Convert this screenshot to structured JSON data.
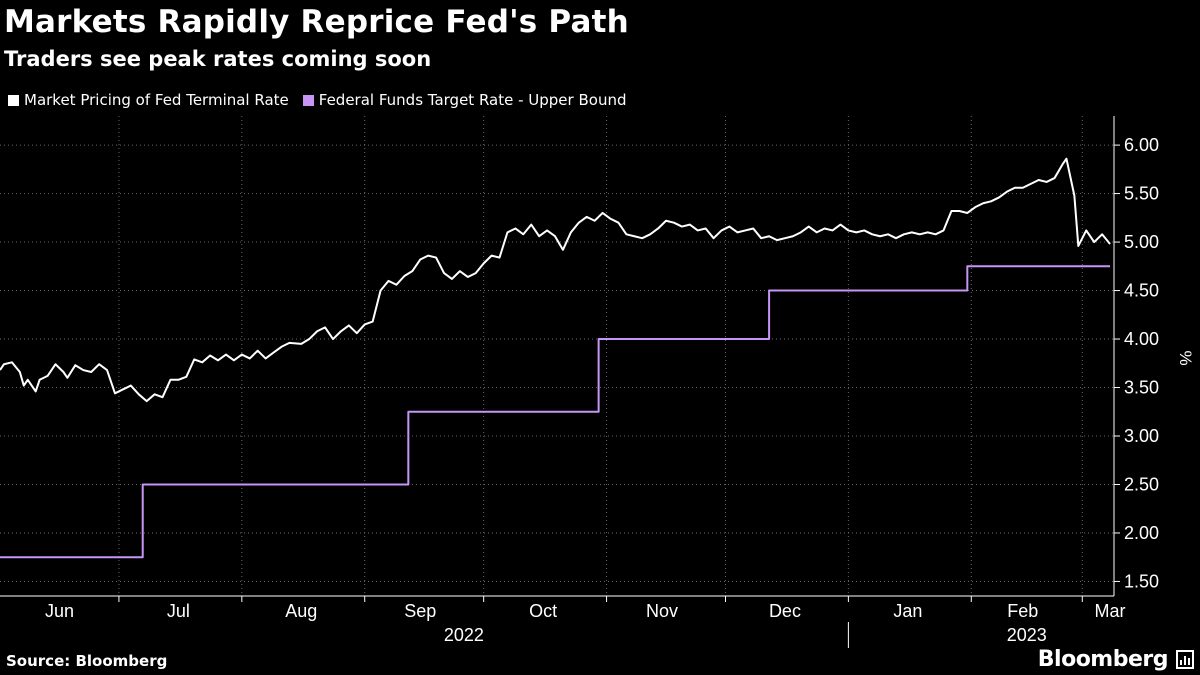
{
  "header": {
    "title": "Markets Rapidly Reprice Fed's Path",
    "subtitle": "Traders see peak rates coming soon"
  },
  "legend": {
    "items": [
      {
        "label": "Market Pricing of Fed Terminal Rate",
        "color": "#ffffff"
      },
      {
        "label": "Federal Funds Target Rate - Upper Bound",
        "color": "#c795f5"
      }
    ]
  },
  "footer": {
    "source": "Source: Bloomberg",
    "brand": "Bloomberg"
  },
  "chart_data": {
    "type": "line",
    "ylabel": "%",
    "ylim": [
      1.35,
      6.3
    ],
    "y_ticks": [
      "1.50",
      "2.00",
      "2.50",
      "3.00",
      "3.50",
      "4.00",
      "4.50",
      "5.00",
      "5.50",
      "6.00"
    ],
    "x_range": [
      "2022-06-01",
      "2023-03-09"
    ],
    "x_month_labels": [
      {
        "label": "Jun",
        "date": "2022-06-16"
      },
      {
        "label": "Jul",
        "date": "2022-07-16"
      },
      {
        "label": "Aug",
        "date": "2022-08-16"
      },
      {
        "label": "Sep",
        "date": "2022-09-15"
      },
      {
        "label": "Oct",
        "date": "2022-10-16"
      },
      {
        "label": "Nov",
        "date": "2022-11-15"
      },
      {
        "label": "Dec",
        "date": "2022-12-16"
      },
      {
        "label": "Jan",
        "date": "2023-01-16"
      },
      {
        "label": "Feb",
        "date": "2023-02-14"
      },
      {
        "label": "Mar",
        "date": "2023-03-08"
      }
    ],
    "x_year_labels": [
      {
        "label": "2022",
        "date": "2022-09-26"
      },
      {
        "label": "2023",
        "date": "2023-02-15"
      }
    ],
    "grid": true,
    "legend_position": "top-left",
    "series": [
      {
        "name": "Market Pricing of Fed Terminal Rate",
        "color": "#ffffff",
        "points": [
          [
            "2022-06-01",
            3.68
          ],
          [
            "2022-06-02",
            3.74
          ],
          [
            "2022-06-04",
            3.76
          ],
          [
            "2022-06-06",
            3.66
          ],
          [
            "2022-06-07",
            3.52
          ],
          [
            "2022-06-08",
            3.58
          ],
          [
            "2022-06-10",
            3.46
          ],
          [
            "2022-06-11",
            3.58
          ],
          [
            "2022-06-13",
            3.62
          ],
          [
            "2022-06-15",
            3.74
          ],
          [
            "2022-06-17",
            3.66
          ],
          [
            "2022-06-18",
            3.6
          ],
          [
            "2022-06-20",
            3.73
          ],
          [
            "2022-06-22",
            3.68
          ],
          [
            "2022-06-24",
            3.66
          ],
          [
            "2022-06-26",
            3.74
          ],
          [
            "2022-06-28",
            3.68
          ],
          [
            "2022-06-30",
            3.44
          ],
          [
            "2022-07-02",
            3.48
          ],
          [
            "2022-07-04",
            3.52
          ],
          [
            "2022-07-06",
            3.43
          ],
          [
            "2022-07-08",
            3.36
          ],
          [
            "2022-07-10",
            3.43
          ],
          [
            "2022-07-12",
            3.4
          ],
          [
            "2022-07-14",
            3.58
          ],
          [
            "2022-07-16",
            3.58
          ],
          [
            "2022-07-18",
            3.61
          ],
          [
            "2022-07-20",
            3.79
          ],
          [
            "2022-07-22",
            3.76
          ],
          [
            "2022-07-24",
            3.83
          ],
          [
            "2022-07-26",
            3.78
          ],
          [
            "2022-07-28",
            3.84
          ],
          [
            "2022-07-30",
            3.78
          ],
          [
            "2022-08-01",
            3.84
          ],
          [
            "2022-08-03",
            3.8
          ],
          [
            "2022-08-05",
            3.88
          ],
          [
            "2022-08-07",
            3.8
          ],
          [
            "2022-08-09",
            3.86
          ],
          [
            "2022-08-11",
            3.92
          ],
          [
            "2022-08-13",
            3.96
          ],
          [
            "2022-08-16",
            3.95
          ],
          [
            "2022-08-18",
            4.0
          ],
          [
            "2022-08-20",
            4.08
          ],
          [
            "2022-08-22",
            4.12
          ],
          [
            "2022-08-24",
            4.0
          ],
          [
            "2022-08-26",
            4.08
          ],
          [
            "2022-08-28",
            4.14
          ],
          [
            "2022-08-30",
            4.06
          ],
          [
            "2022-09-01",
            4.15
          ],
          [
            "2022-09-03",
            4.18
          ],
          [
            "2022-09-05",
            4.5
          ],
          [
            "2022-09-07",
            4.6
          ],
          [
            "2022-09-09",
            4.56
          ],
          [
            "2022-09-11",
            4.65
          ],
          [
            "2022-09-13",
            4.7
          ],
          [
            "2022-09-15",
            4.82
          ],
          [
            "2022-09-17",
            4.86
          ],
          [
            "2022-09-19",
            4.84
          ],
          [
            "2022-09-21",
            4.68
          ],
          [
            "2022-09-23",
            4.62
          ],
          [
            "2022-09-25",
            4.7
          ],
          [
            "2022-09-27",
            4.64
          ],
          [
            "2022-09-29",
            4.68
          ],
          [
            "2022-10-01",
            4.78
          ],
          [
            "2022-10-03",
            4.86
          ],
          [
            "2022-10-05",
            4.84
          ],
          [
            "2022-10-07",
            5.1
          ],
          [
            "2022-10-09",
            5.14
          ],
          [
            "2022-10-11",
            5.08
          ],
          [
            "2022-10-13",
            5.18
          ],
          [
            "2022-10-15",
            5.06
          ],
          [
            "2022-10-17",
            5.12
          ],
          [
            "2022-10-19",
            5.06
          ],
          [
            "2022-10-21",
            4.92
          ],
          [
            "2022-10-23",
            5.1
          ],
          [
            "2022-10-25",
            5.2
          ],
          [
            "2022-10-27",
            5.26
          ],
          [
            "2022-10-29",
            5.22
          ],
          [
            "2022-10-31",
            5.3
          ],
          [
            "2022-11-02",
            5.24
          ],
          [
            "2022-11-04",
            5.2
          ],
          [
            "2022-11-06",
            5.08
          ],
          [
            "2022-11-08",
            5.06
          ],
          [
            "2022-11-10",
            5.04
          ],
          [
            "2022-11-12",
            5.08
          ],
          [
            "2022-11-14",
            5.14
          ],
          [
            "2022-11-16",
            5.22
          ],
          [
            "2022-11-18",
            5.2
          ],
          [
            "2022-11-20",
            5.16
          ],
          [
            "2022-11-22",
            5.18
          ],
          [
            "2022-11-24",
            5.12
          ],
          [
            "2022-11-26",
            5.14
          ],
          [
            "2022-11-28",
            5.04
          ],
          [
            "2022-11-30",
            5.12
          ],
          [
            "2022-12-02",
            5.16
          ],
          [
            "2022-12-04",
            5.1
          ],
          [
            "2022-12-06",
            5.12
          ],
          [
            "2022-12-08",
            5.14
          ],
          [
            "2022-12-10",
            5.04
          ],
          [
            "2022-12-12",
            5.06
          ],
          [
            "2022-12-14",
            5.02
          ],
          [
            "2022-12-16",
            5.04
          ],
          [
            "2022-12-18",
            5.06
          ],
          [
            "2022-12-20",
            5.1
          ],
          [
            "2022-12-22",
            5.16
          ],
          [
            "2022-12-24",
            5.1
          ],
          [
            "2022-12-26",
            5.14
          ],
          [
            "2022-12-28",
            5.12
          ],
          [
            "2022-12-30",
            5.18
          ],
          [
            "2023-01-01",
            5.12
          ],
          [
            "2023-01-03",
            5.1
          ],
          [
            "2023-01-05",
            5.12
          ],
          [
            "2023-01-07",
            5.08
          ],
          [
            "2023-01-09",
            5.06
          ],
          [
            "2023-01-11",
            5.08
          ],
          [
            "2023-01-13",
            5.04
          ],
          [
            "2023-01-15",
            5.08
          ],
          [
            "2023-01-17",
            5.1
          ],
          [
            "2023-01-19",
            5.08
          ],
          [
            "2023-01-21",
            5.1
          ],
          [
            "2023-01-23",
            5.08
          ],
          [
            "2023-01-25",
            5.12
          ],
          [
            "2023-01-27",
            5.32
          ],
          [
            "2023-01-29",
            5.32
          ],
          [
            "2023-01-31",
            5.3
          ],
          [
            "2023-02-02",
            5.36
          ],
          [
            "2023-02-04",
            5.4
          ],
          [
            "2023-02-06",
            5.42
          ],
          [
            "2023-02-08",
            5.46
          ],
          [
            "2023-02-10",
            5.52
          ],
          [
            "2023-02-12",
            5.56
          ],
          [
            "2023-02-14",
            5.56
          ],
          [
            "2023-02-16",
            5.6
          ],
          [
            "2023-02-18",
            5.64
          ],
          [
            "2023-02-20",
            5.62
          ],
          [
            "2023-02-22",
            5.66
          ],
          [
            "2023-02-24",
            5.8
          ],
          [
            "2023-02-25",
            5.86
          ],
          [
            "2023-02-27",
            5.48
          ],
          [
            "2023-02-28",
            4.96
          ],
          [
            "2023-03-02",
            5.12
          ],
          [
            "2023-03-04",
            5.0
          ],
          [
            "2023-03-06",
            5.08
          ],
          [
            "2023-03-08",
            4.98
          ]
        ]
      },
      {
        "name": "Federal Funds Target Rate - Upper Bound",
        "color": "#c795f5",
        "step": true,
        "points": [
          [
            "2022-06-01",
            1.75
          ],
          [
            "2022-07-07",
            2.5
          ],
          [
            "2022-09-12",
            3.25
          ],
          [
            "2022-10-30",
            4.0
          ],
          [
            "2022-12-12",
            4.5
          ],
          [
            "2023-01-31",
            4.75
          ],
          [
            "2023-03-08",
            4.75
          ]
        ]
      }
    ]
  }
}
